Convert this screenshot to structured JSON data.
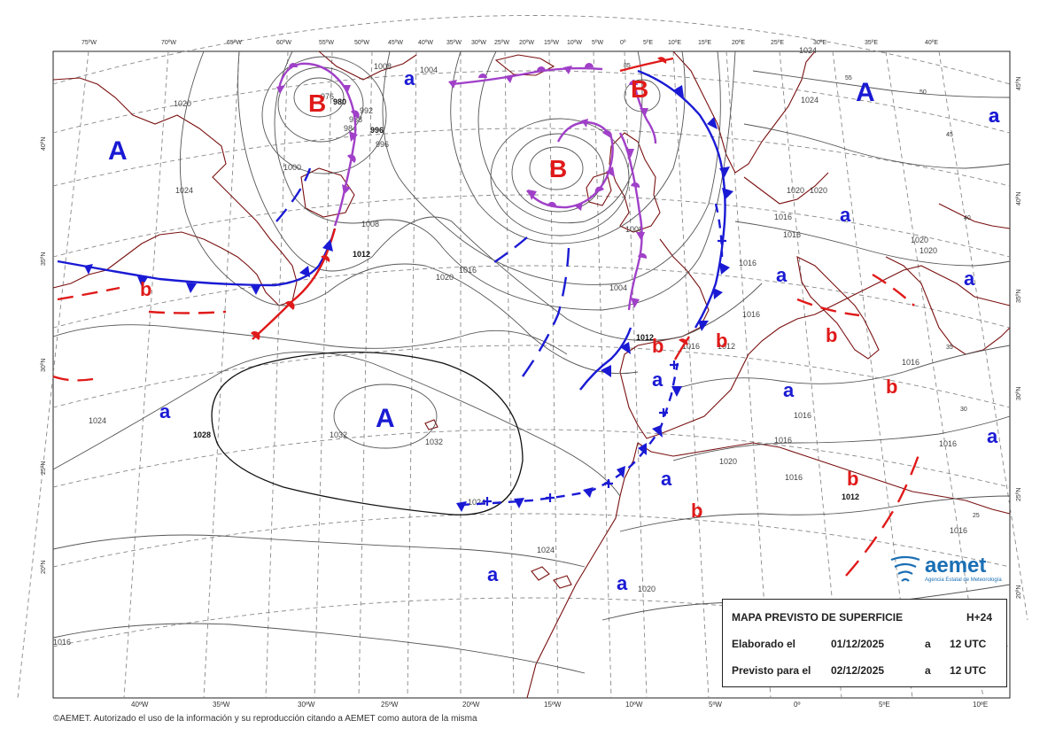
{
  "map": {
    "top_lon_labels": [
      "75ºW",
      "70ºW",
      "65ºW",
      "60ºW",
      "55ºW",
      "50ºW",
      "45ºW",
      "40ºW",
      "35ºW",
      "30ºW",
      "25ºW",
      "20ºW",
      "15ºW",
      "10ºW",
      "5ºW",
      "0º",
      "5ºE",
      "10ºE",
      "15ºE",
      "20ºE",
      "25ºE",
      "30ºE",
      "35ºE",
      "40ºE"
    ],
    "bottom_lon_labels": [
      "40ºW",
      "35ºW",
      "30ºW",
      "25ºW",
      "20ºW",
      "15ºW",
      "10ºW",
      "5ºW",
      "0º",
      "5ºE",
      "10ºE"
    ],
    "left_lat_labels": [
      "40ºN",
      "35ºN",
      "30ºN",
      "25ºN",
      "20ºN"
    ],
    "right_lat_labels": [
      "45ºN",
      "40ºN",
      "35ºN",
      "30ºN",
      "25ºN",
      "20ºN"
    ],
    "isobar_labels": [
      "1008",
      "1004",
      "1020",
      "1024",
      "1000",
      "996",
      "992",
      "988",
      "984",
      "980",
      "976",
      "996",
      "1008",
      "1012",
      "1016",
      "1020",
      "1024",
      "1028",
      "1032",
      "1032",
      "1024",
      "1024",
      "1020",
      "1016",
      "1016",
      "1016",
      "1012",
      "1012",
      "1004",
      "1008",
      "1020",
      "1020",
      "1020",
      "1016",
      "1016",
      "1016",
      "1016",
      "1020",
      "1024",
      "1016",
      "1016",
      "1012",
      "1016",
      "1016",
      "1020",
      "1024",
      "1016",
      "55",
      "50",
      "45",
      "40",
      "35",
      "30",
      "25",
      "85"
    ],
    "systems": [
      {
        "label": "A",
        "kind": "high"
      },
      {
        "label": "A",
        "kind": "high"
      },
      {
        "label": "A",
        "kind": "high"
      },
      {
        "label": "B",
        "kind": "low"
      },
      {
        "label": "B",
        "kind": "low"
      },
      {
        "label": "B",
        "kind": "low"
      },
      {
        "label": "a",
        "kind": "rel-high"
      },
      {
        "label": "a",
        "kind": "rel-high"
      },
      {
        "label": "a",
        "kind": "rel-high"
      },
      {
        "label": "a",
        "kind": "rel-high"
      },
      {
        "label": "a",
        "kind": "rel-high"
      },
      {
        "label": "a",
        "kind": "rel-high"
      },
      {
        "label": "a",
        "kind": "rel-high"
      },
      {
        "label": "a",
        "kind": "rel-high"
      },
      {
        "label": "a",
        "kind": "rel-high"
      },
      {
        "label": "a",
        "kind": "rel-high"
      },
      {
        "label": "a",
        "kind": "rel-high"
      },
      {
        "label": "a",
        "kind": "rel-high"
      },
      {
        "label": "a",
        "kind": "rel-high"
      },
      {
        "label": "a",
        "kind": "rel-high"
      },
      {
        "label": "b",
        "kind": "rel-low"
      },
      {
        "label": "b",
        "kind": "rel-low"
      },
      {
        "label": "b",
        "kind": "rel-low"
      },
      {
        "label": "b",
        "kind": "rel-low"
      },
      {
        "label": "b",
        "kind": "rel-low"
      },
      {
        "label": "b",
        "kind": "rel-low"
      },
      {
        "label": "b",
        "kind": "rel-low"
      }
    ],
    "colors": {
      "cold_front": "#1a1ad4",
      "warm_front": "#e01a1a",
      "occluded_front": "#a040c8",
      "coast": "#7a1010",
      "isobar": "#555555",
      "grid": "#888888"
    }
  },
  "info_box": {
    "title": "MAPA PREVISTO DE SUPERFICIE",
    "forecast_step": "H+24",
    "issued_label": "Elaborado el",
    "issued_date": "01/12/2025",
    "issued_a": "a",
    "issued_time": "12 UTC",
    "valid_label": "Previsto para el",
    "valid_date": "02/12/2025",
    "valid_a": "a",
    "valid_time": "12 UTC"
  },
  "logo": {
    "name": "aemet",
    "subtitle": "Agencia Estatal de Meteorología"
  },
  "copyright": "©AEMET. Autorizado el uso de la información y su reproducción citando a AEMET como autora de la misma"
}
